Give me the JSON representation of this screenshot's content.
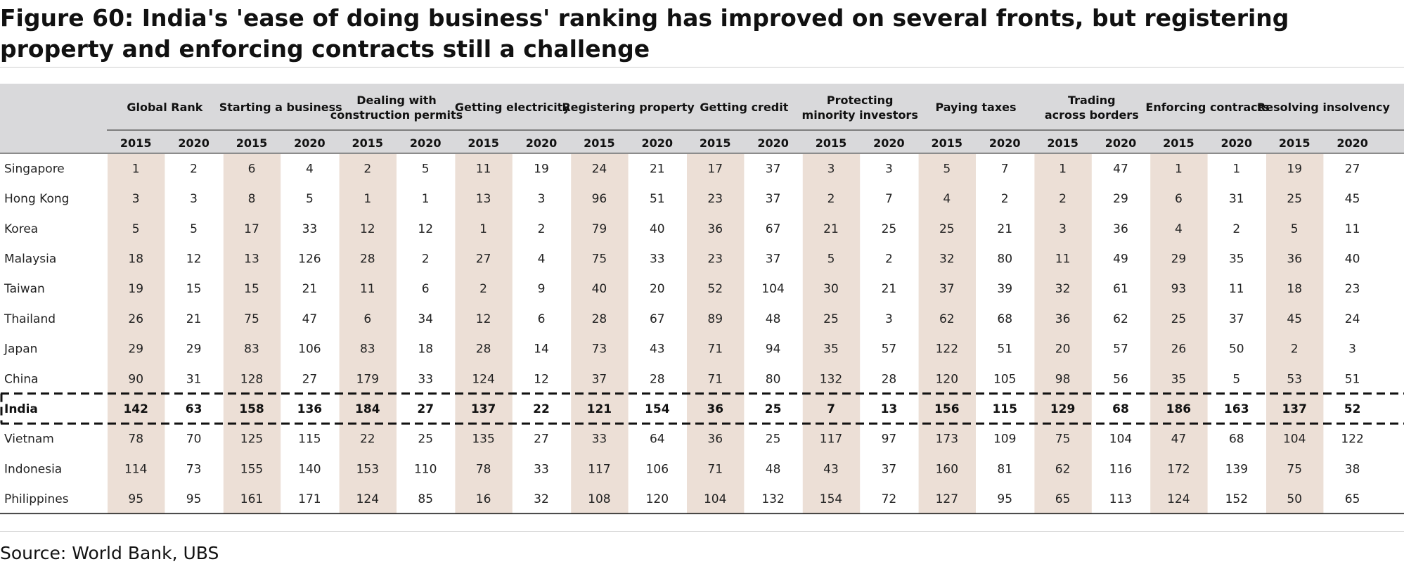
{
  "figure": {
    "title": "Figure 60: India's 'ease of doing business' ranking has improved on several fronts, but registering property and enforcing contracts still a challenge",
    "source": "Source: World Bank, UBS"
  },
  "colors": {
    "header_bg": "#d9d9db",
    "shade_2015": "#ecdfd6",
    "highlight_border": "#111111"
  },
  "chart_data": {
    "type": "table",
    "year_labels": [
      "2015",
      "2020"
    ],
    "groups": [
      "Global Rank",
      "Starting a business",
      "Dealing with construction permits",
      "Getting electricity",
      "Registering property",
      "Getting credit",
      "Protecting minority investors",
      "Paying taxes",
      "Trading across borders",
      "Enforcing contracts",
      "Resolving insolvency"
    ],
    "highlight_row": "India",
    "rows": [
      {
        "country": "Singapore",
        "values": [
          1,
          2,
          6,
          4,
          2,
          5,
          11,
          19,
          24,
          21,
          17,
          37,
          3,
          3,
          5,
          7,
          1,
          47,
          1,
          1,
          19,
          27
        ]
      },
      {
        "country": "Hong Kong",
        "values": [
          3,
          3,
          8,
          5,
          1,
          1,
          13,
          3,
          96,
          51,
          23,
          37,
          2,
          7,
          4,
          2,
          2,
          29,
          6,
          31,
          25,
          45
        ]
      },
      {
        "country": "Korea",
        "values": [
          5,
          5,
          17,
          33,
          12,
          12,
          1,
          2,
          79,
          40,
          36,
          67,
          21,
          25,
          25,
          21,
          3,
          36,
          4,
          2,
          5,
          11
        ]
      },
      {
        "country": "Malaysia",
        "values": [
          18,
          12,
          13,
          126,
          28,
          2,
          27,
          4,
          75,
          33,
          23,
          37,
          5,
          2,
          32,
          80,
          11,
          49,
          29,
          35,
          36,
          40
        ]
      },
      {
        "country": "Taiwan",
        "values": [
          19,
          15,
          15,
          21,
          11,
          6,
          2,
          9,
          40,
          20,
          52,
          104,
          30,
          21,
          37,
          39,
          32,
          61,
          93,
          11,
          18,
          23
        ]
      },
      {
        "country": "Thailand",
        "values": [
          26,
          21,
          75,
          47,
          6,
          34,
          12,
          6,
          28,
          67,
          89,
          48,
          25,
          3,
          62,
          68,
          36,
          62,
          25,
          37,
          45,
          24
        ]
      },
      {
        "country": "Japan",
        "values": [
          29,
          29,
          83,
          106,
          83,
          18,
          28,
          14,
          73,
          43,
          71,
          94,
          35,
          57,
          122,
          51,
          20,
          57,
          26,
          50,
          2,
          3
        ]
      },
      {
        "country": "China",
        "values": [
          90,
          31,
          128,
          27,
          179,
          33,
          124,
          12,
          37,
          28,
          71,
          80,
          132,
          28,
          120,
          105,
          98,
          56,
          35,
          5,
          53,
          51
        ]
      },
      {
        "country": "India",
        "values": [
          142,
          63,
          158,
          136,
          184,
          27,
          137,
          22,
          121,
          154,
          36,
          25,
          7,
          13,
          156,
          115,
          129,
          68,
          186,
          163,
          137,
          52
        ]
      },
      {
        "country": "Vietnam",
        "values": [
          78,
          70,
          125,
          115,
          22,
          25,
          135,
          27,
          33,
          64,
          36,
          25,
          117,
          97,
          173,
          109,
          75,
          104,
          47,
          68,
          104,
          122
        ]
      },
      {
        "country": "Indonesia",
        "values": [
          114,
          73,
          155,
          140,
          153,
          110,
          78,
          33,
          117,
          106,
          71,
          48,
          43,
          37,
          160,
          81,
          62,
          116,
          172,
          139,
          75,
          38
        ]
      },
      {
        "country": "Philippines",
        "values": [
          95,
          95,
          161,
          171,
          124,
          85,
          16,
          32,
          108,
          120,
          104,
          132,
          154,
          72,
          127,
          95,
          65,
          113,
          124,
          152,
          50,
          65
        ]
      }
    ]
  }
}
